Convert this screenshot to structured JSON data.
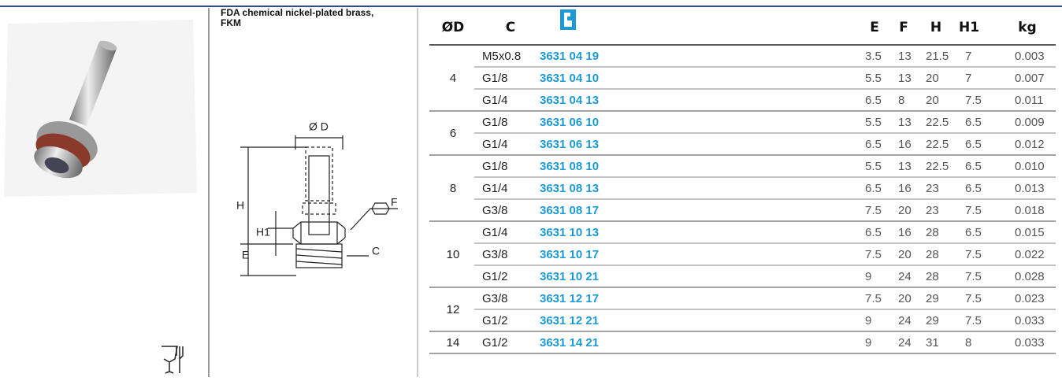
{
  "description": "FDA chemical nickel-plated brass, FKM",
  "drawing": {
    "d": "Ø D",
    "h": "H",
    "h1": "H1",
    "e": "E",
    "f": "F",
    "c": "C"
  },
  "table": {
    "headers": [
      "ØD",
      "C",
      "E",
      "F",
      "H",
      "H1",
      "kg"
    ],
    "groups": [
      {
        "d": "4",
        "rows": [
          [
            "M5x0.8",
            "3631 04 19",
            "3.5",
            "13",
            "21.5",
            "7",
            "0.003"
          ],
          [
            "G1/8",
            "3631 04 10",
            "5.5",
            "13",
            "20",
            "7",
            "0.007"
          ],
          [
            "G1/4",
            "3631 04 13",
            "6.5",
            "8",
            "20",
            "7.5",
            "0.011"
          ]
        ]
      },
      {
        "d": "6",
        "rows": [
          [
            "G1/8",
            "3631 06 10",
            "5.5",
            "13",
            "22.5",
            "6.5",
            "0.009"
          ],
          [
            "G1/4",
            "3631 06 13",
            "6.5",
            "16",
            "22.5",
            "6.5",
            "0.012"
          ]
        ]
      },
      {
        "d": "8",
        "rows": [
          [
            "G1/8",
            "3631 08 10",
            "5.5",
            "13",
            "22.5",
            "6.5",
            "0.010"
          ],
          [
            "G1/4",
            "3631 08 13",
            "6.5",
            "16",
            "23",
            "6.5",
            "0.013"
          ],
          [
            "G3/8",
            "3631 08 17",
            "7.5",
            "20",
            "23",
            "7.5",
            "0.018"
          ]
        ]
      },
      {
        "d": "10",
        "rows": [
          [
            "G1/4",
            "3631 10 13",
            "6.5",
            "16",
            "28",
            "6.5",
            "0.015"
          ],
          [
            "G3/8",
            "3631 10 17",
            "7.5",
            "20",
            "28",
            "7.5",
            "0.022"
          ],
          [
            "G1/2",
            "3631 10 21",
            "9",
            "24",
            "28",
            "7.5",
            "0.028"
          ]
        ]
      },
      {
        "d": "12",
        "rows": [
          [
            "G3/8",
            "3631 12 17",
            "7.5",
            "20",
            "29",
            "7.5",
            "0.023"
          ],
          [
            "G1/2",
            "3631 12 21",
            "9",
            "24",
            "29",
            "7.5",
            "0.033"
          ]
        ]
      },
      {
        "d": "14",
        "rows": [
          [
            "G1/2",
            "3631 14 21",
            "9",
            "24",
            "31",
            "8",
            "0.033"
          ]
        ]
      }
    ]
  }
}
